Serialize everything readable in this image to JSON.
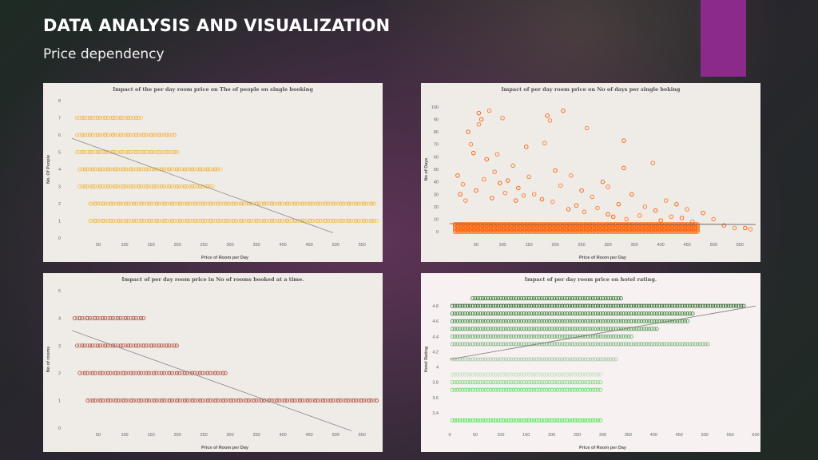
{
  "slide": {
    "title": "DATA ANALYSIS AND VISUALIZATION",
    "subtitle": "Price dependency",
    "accent_color": "#8c2a8c"
  },
  "chart_data": [
    {
      "type": "scatter",
      "title": "Impact of the per day room price on The of people on single booking",
      "xlabel": "Price of Room per Day",
      "ylabel": "No. Of People",
      "xlim": [
        0,
        580
      ],
      "ylim": [
        0,
        8
      ],
      "xticks": [
        50,
        100,
        150,
        200,
        250,
        300,
        350,
        400,
        450,
        500,
        550
      ],
      "yticks": [
        0,
        1,
        2,
        3,
        4,
        5,
        6,
        7,
        8
      ],
      "background": "#efebe7",
      "colors": [
        "#f7b731",
        "#f5c85a",
        "#e8a33a"
      ],
      "series": [
        {
          "y": 7,
          "x_min": 10,
          "x_max": 135
        },
        {
          "y": 6,
          "x_min": 10,
          "x_max": 195
        },
        {
          "y": 5,
          "x_min": 10,
          "x_max": 200
        },
        {
          "y": 4,
          "x_min": 15,
          "x_max": 285
        },
        {
          "y": 3,
          "x_min": 15,
          "x_max": 270
        },
        {
          "y": 2,
          "x_min": 35,
          "x_max": 575
        },
        {
          "y": 1,
          "x_min": 35,
          "x_max": 580
        }
      ],
      "trendline": [
        [
          0,
          5.8
        ],
        [
          495,
          0.3
        ]
      ],
      "trend_color": "#8a8a8a"
    },
    {
      "type": "scatter",
      "title": "Impact of per day room price on No of days per single boking",
      "xlabel": "Price of Room per Day",
      "ylabel": "No of Days",
      "xlim": [
        0,
        580
      ],
      "ylim": [
        -5,
        105
      ],
      "xticks": [
        50,
        100,
        150,
        200,
        250,
        300,
        350,
        400,
        450,
        500,
        550
      ],
      "yticks": [
        0,
        10,
        20,
        30,
        40,
        50,
        60,
        70,
        80,
        90,
        100
      ],
      "background": "#efebe7",
      "colors": [
        "#ff5a00",
        "#ff7a2a"
      ],
      "dense_band": {
        "y_min": 0,
        "y_max": 7,
        "x_min": 10,
        "x_max": 470
      },
      "outliers": [
        [
          55,
          95
        ],
        [
          75,
          97
        ],
        [
          60,
          90
        ],
        [
          100,
          91
        ],
        [
          35,
          80
        ],
        [
          55,
          86
        ],
        [
          185,
          93
        ],
        [
          190,
          89
        ],
        [
          215,
          97
        ],
        [
          260,
          83
        ],
        [
          330,
          73
        ],
        [
          180,
          71
        ],
        [
          145,
          68
        ],
        [
          385,
          55
        ],
        [
          330,
          51
        ],
        [
          40,
          70
        ],
        [
          45,
          63
        ],
        [
          90,
          62
        ],
        [
          70,
          58
        ],
        [
          120,
          53
        ],
        [
          200,
          49
        ],
        [
          230,
          45
        ],
        [
          290,
          40
        ],
        [
          300,
          36
        ],
        [
          345,
          30
        ],
        [
          410,
          25
        ],
        [
          430,
          22
        ],
        [
          450,
          18
        ],
        [
          480,
          15
        ],
        [
          500,
          10
        ],
        [
          520,
          5
        ],
        [
          540,
          3
        ],
        [
          560,
          3
        ],
        [
          570,
          2
        ],
        [
          15,
          45
        ],
        [
          25,
          38
        ],
        [
          110,
          41
        ],
        [
          150,
          44
        ],
        [
          250,
          33
        ],
        [
          270,
          28
        ],
        [
          320,
          22
        ],
        [
          370,
          20
        ],
        [
          390,
          17
        ],
        [
          420,
          12
        ],
        [
          440,
          11
        ],
        [
          160,
          30
        ],
        [
          130,
          35
        ],
        [
          85,
          48
        ],
        [
          95,
          39
        ],
        [
          210,
          37
        ],
        [
          240,
          21
        ],
        [
          280,
          19
        ],
        [
          300,
          14
        ],
        [
          360,
          13
        ],
        [
          400,
          9
        ],
        [
          460,
          8
        ],
        [
          20,
          30
        ],
        [
          30,
          25
        ],
        [
          50,
          33
        ],
        [
          65,
          42
        ],
        [
          80,
          27
        ],
        [
          105,
          31
        ],
        [
          125,
          25
        ],
        [
          140,
          29
        ],
        [
          175,
          26
        ],
        [
          195,
          24
        ],
        [
          225,
          18
        ],
        [
          255,
          16
        ],
        [
          310,
          12
        ],
        [
          335,
          10
        ]
      ],
      "trendline": [
        [
          0,
          6.5
        ],
        [
          580,
          5.8
        ]
      ],
      "trend_color": "#555555"
    },
    {
      "type": "scatter",
      "title": "Impact of per day room price in No of rooms booked at a time.",
      "xlabel": "Price of Room per Day",
      "ylabel": "No of rooms",
      "xlim": [
        0,
        580
      ],
      "ylim": [
        0,
        5
      ],
      "xticks": [
        50,
        100,
        150,
        200,
        250,
        300,
        350,
        400,
        450,
        500,
        550
      ],
      "yticks": [
        0,
        1,
        2,
        3,
        4,
        5
      ],
      "background": "#efebe7",
      "colors": [
        "#b1452f",
        "#c87a6a",
        "#a0392a"
      ],
      "series": [
        {
          "y": 4,
          "x_min": 5,
          "x_max": 140
        },
        {
          "y": 3,
          "x_min": 10,
          "x_max": 200
        },
        {
          "y": 2,
          "x_min": 15,
          "x_max": 295
        },
        {
          "y": 1,
          "x_min": 30,
          "x_max": 580
        }
      ],
      "trendline": [
        [
          0,
          3.55
        ],
        [
          530,
          -0.1
        ]
      ],
      "trend_color": "#8a8a8a"
    },
    {
      "type": "scatter",
      "title": "Impact of per day room price on hotel rating.",
      "xlabel": "Price of Room per Day",
      "ylabel": "Hotel Rating",
      "xlim": [
        0,
        600
      ],
      "ylim": [
        3.2,
        5.0
      ],
      "xticks": [
        0,
        50,
        100,
        150,
        200,
        250,
        300,
        350,
        400,
        450,
        500,
        550,
        600
      ],
      "yticks": [
        3.4,
        3.6,
        3.8,
        4.0,
        4.2,
        4.4,
        4.6,
        4.8
      ],
      "background": "#f7f1f1",
      "series": [
        {
          "y": 4.9,
          "x_min": 45,
          "x_max": 340,
          "color": "#1e6b1e"
        },
        {
          "y": 4.8,
          "x_min": 5,
          "x_max": 580,
          "color": "#1a5a1a"
        },
        {
          "y": 4.7,
          "x_min": 5,
          "x_max": 480,
          "color": "#2a7a2a"
        },
        {
          "y": 4.6,
          "x_min": 5,
          "x_max": 470,
          "color": "#3a8a3a"
        },
        {
          "y": 4.5,
          "x_min": 5,
          "x_max": 410,
          "color": "#4d9a4d"
        },
        {
          "y": 4.4,
          "x_min": 5,
          "x_max": 360,
          "color": "#5aa65a"
        },
        {
          "y": 4.3,
          "x_min": 5,
          "x_max": 510,
          "color": "#7cb37c"
        },
        {
          "y": 4.1,
          "x_min": 5,
          "x_max": 330,
          "color": "#a3c4a3"
        },
        {
          "y": 3.9,
          "x_min": 5,
          "x_max": 300,
          "color": "#bfe0bf"
        },
        {
          "y": 3.8,
          "x_min": 5,
          "x_max": 300,
          "color": "#7ed67e"
        },
        {
          "y": 3.7,
          "x_min": 5,
          "x_max": 300,
          "color": "#66dd66"
        },
        {
          "y": 3.3,
          "x_min": 5,
          "x_max": 300,
          "color": "#3ee43e"
        }
      ],
      "trendline": [
        [
          0,
          4.1
        ],
        [
          600,
          4.8
        ]
      ],
      "trend_color": "#777777"
    }
  ]
}
